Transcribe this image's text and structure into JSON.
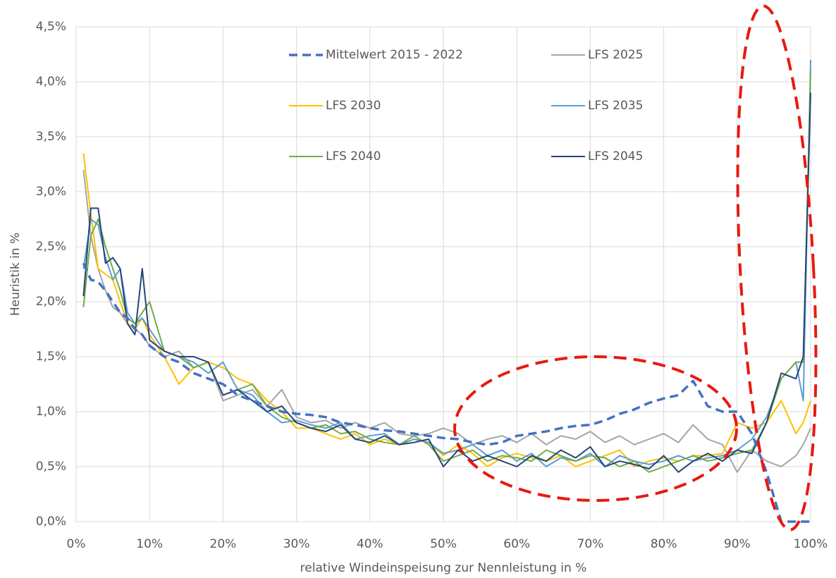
{
  "chart_data": {
    "type": "line",
    "xlabel": "relative Windeinspeisung zur Nennleistung in %",
    "ylabel": "Heuristik in %",
    "grid": true,
    "legend": "top",
    "x": [
      1,
      2,
      3,
      4,
      5,
      6,
      7,
      8,
      9,
      10,
      12,
      14,
      16,
      18,
      20,
      22,
      24,
      26,
      28,
      30,
      32,
      34,
      36,
      38,
      40,
      42,
      44,
      46,
      48,
      50,
      52,
      54,
      56,
      58,
      60,
      62,
      64,
      66,
      68,
      70,
      72,
      74,
      76,
      78,
      80,
      82,
      84,
      86,
      88,
      90,
      92,
      94,
      96,
      98,
      99,
      100
    ],
    "xlim": [
      0,
      100
    ],
    "xticks": [
      {
        "value": 0,
        "label": "0%"
      },
      {
        "value": 10,
        "label": "10%"
      },
      {
        "value": 20,
        "label": "20%"
      },
      {
        "value": 30,
        "label": "30%"
      },
      {
        "value": 40,
        "label": "40%"
      },
      {
        "value": 50,
        "label": "50%"
      },
      {
        "value": 60,
        "label": "60%"
      },
      {
        "value": 70,
        "label": "70%"
      },
      {
        "value": 80,
        "label": "80%"
      },
      {
        "value": 90,
        "label": "90%"
      },
      {
        "value": 100,
        "label": "100%"
      }
    ],
    "ylim": [
      0,
      4.5
    ],
    "yticks": [
      {
        "value": 0,
        "label": "0,0%"
      },
      {
        "value": 0.5,
        "label": "0,5%"
      },
      {
        "value": 1,
        "label": "1,0%"
      },
      {
        "value": 1.5,
        "label": "1,5%"
      },
      {
        "value": 2,
        "label": "2,0%"
      },
      {
        "value": 2.5,
        "label": "2,5%"
      },
      {
        "value": 3,
        "label": "3,0%"
      },
      {
        "value": 3.5,
        "label": "3,5%"
      },
      {
        "value": 4,
        "label": "4,0%"
      },
      {
        "value": 4.5,
        "label": "4,5%"
      }
    ],
    "series": [
      {
        "name": "LFS 2025",
        "color": "#a5a5a5",
        "values": [
          3.2,
          2.6,
          2.3,
          2.1,
          1.95,
          1.9,
          1.8,
          1.75,
          1.7,
          1.6,
          1.5,
          1.55,
          1.4,
          1.45,
          1.1,
          1.15,
          1.2,
          1.05,
          1.2,
          0.95,
          0.9,
          0.92,
          0.85,
          0.9,
          0.85,
          0.9,
          0.8,
          0.78,
          0.8,
          0.85,
          0.8,
          0.7,
          0.75,
          0.78,
          0.72,
          0.8,
          0.7,
          0.78,
          0.75,
          0.82,
          0.72,
          0.78,
          0.7,
          0.75,
          0.8,
          0.72,
          0.88,
          0.75,
          0.7,
          0.45,
          0.65,
          0.55,
          0.5,
          0.6,
          0.7,
          0.85
        ]
      },
      {
        "name": "LFS 2030",
        "color": "#ffc000",
        "values": [
          3.35,
          2.8,
          2.3,
          2.25,
          2.2,
          2.0,
          1.8,
          1.75,
          1.85,
          1.7,
          1.5,
          1.25,
          1.4,
          1.45,
          1.4,
          1.3,
          1.25,
          1.1,
          1.0,
          0.85,
          0.85,
          0.8,
          0.75,
          0.8,
          0.7,
          0.75,
          0.7,
          0.75,
          0.72,
          0.6,
          0.7,
          0.62,
          0.5,
          0.58,
          0.62,
          0.58,
          0.55,
          0.6,
          0.5,
          0.55,
          0.6,
          0.65,
          0.5,
          0.55,
          0.58,
          0.55,
          0.6,
          0.6,
          0.62,
          0.9,
          0.85,
          0.9,
          1.1,
          0.8,
          0.9,
          1.1
        ]
      },
      {
        "name": "LFS 2035",
        "color": "#5b9bd5",
        "values": [
          2.3,
          2.75,
          2.7,
          2.4,
          2.2,
          2.3,
          1.9,
          1.8,
          1.85,
          1.75,
          1.55,
          1.5,
          1.45,
          1.35,
          1.45,
          1.2,
          1.15,
          1.0,
          0.9,
          0.92,
          0.88,
          0.85,
          0.9,
          0.75,
          0.78,
          0.8,
          0.7,
          0.75,
          0.72,
          0.62,
          0.65,
          0.7,
          0.6,
          0.65,
          0.55,
          0.62,
          0.5,
          0.58,
          0.55,
          0.62,
          0.5,
          0.6,
          0.55,
          0.52,
          0.55,
          0.6,
          0.55,
          0.58,
          0.6,
          0.65,
          0.75,
          0.95,
          1.3,
          1.45,
          1.1,
          4.2
        ]
      },
      {
        "name": "LFS 2040",
        "color": "#70ad47",
        "values": [
          1.95,
          2.6,
          2.75,
          2.5,
          2.3,
          2.1,
          1.85,
          1.8,
          1.9,
          2.0,
          1.55,
          1.5,
          1.4,
          1.45,
          1.15,
          1.2,
          1.25,
          1.05,
          0.95,
          0.9,
          0.85,
          0.88,
          0.8,
          0.82,
          0.75,
          0.72,
          0.7,
          0.78,
          0.7,
          0.55,
          0.6,
          0.65,
          0.55,
          0.6,
          0.58,
          0.55,
          0.65,
          0.6,
          0.55,
          0.6,
          0.58,
          0.5,
          0.55,
          0.45,
          0.5,
          0.55,
          0.6,
          0.55,
          0.58,
          0.62,
          0.65,
          0.9,
          1.3,
          1.45,
          1.45,
          4.1
        ]
      },
      {
        "name": "LFS 2045",
        "color": "#264478",
        "values": [
          2.05,
          2.85,
          2.85,
          2.35,
          2.4,
          2.3,
          1.8,
          1.7,
          2.3,
          1.65,
          1.55,
          1.5,
          1.5,
          1.45,
          1.15,
          1.2,
          1.1,
          1.0,
          1.05,
          0.9,
          0.85,
          0.82,
          0.88,
          0.75,
          0.72,
          0.78,
          0.7,
          0.72,
          0.75,
          0.5,
          0.65,
          0.55,
          0.6,
          0.55,
          0.5,
          0.6,
          0.55,
          0.65,
          0.58,
          0.68,
          0.5,
          0.55,
          0.52,
          0.48,
          0.6,
          0.45,
          0.55,
          0.62,
          0.55,
          0.65,
          0.62,
          0.9,
          1.35,
          1.3,
          1.5,
          3.9
        ]
      },
      {
        "name": "Mittelwert 2015 - 2022",
        "color": "#4472c4",
        "style": "dashed",
        "values": [
          2.35,
          2.2,
          2.18,
          2.1,
          2.0,
          1.9,
          1.85,
          1.75,
          1.7,
          1.6,
          1.5,
          1.45,
          1.35,
          1.3,
          1.25,
          1.15,
          1.1,
          1.05,
          1.0,
          0.98,
          0.97,
          0.95,
          0.9,
          0.88,
          0.85,
          0.83,
          0.82,
          0.8,
          0.78,
          0.76,
          0.75,
          0.72,
          0.7,
          0.72,
          0.78,
          0.8,
          0.82,
          0.85,
          0.87,
          0.88,
          0.92,
          0.98,
          1.02,
          1.08,
          1.12,
          1.15,
          1.28,
          1.05,
          1.0,
          1.0,
          0.8,
          0.45,
          0,
          0,
          0,
          0
        ]
      }
    ]
  }
}
